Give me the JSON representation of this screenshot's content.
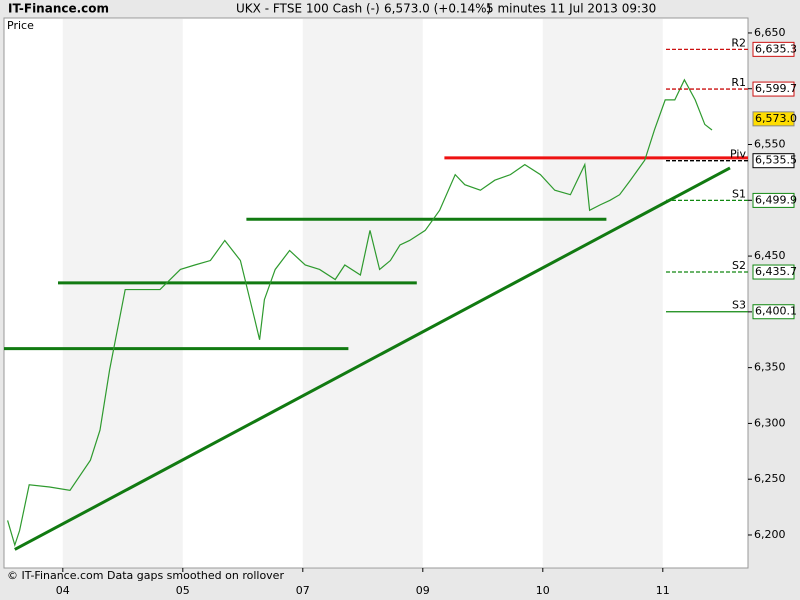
{
  "header": {
    "site": "IT-Finance.com",
    "instrument": "UKX - FTSE 100 Cash (-)",
    "last": "6,573.0 (+0.14%)",
    "interval": "5 minutes",
    "datetime": "11 Jul 2013 09:30"
  },
  "chart_data": {
    "type": "line",
    "y_label": "Price",
    "footer": "© IT-Finance.com  Data gaps smoothed on rollover",
    "color": "#2e9a2e",
    "shaded_days": true,
    "x": [
      -0.46,
      -0.4,
      -0.36,
      -0.28,
      -0.11,
      0.06,
      0.23,
      0.31,
      0.39,
      0.52,
      0.6,
      0.68,
      0.81,
      0.98,
      1.1,
      1.23,
      1.35,
      1.48,
      1.6,
      1.64,
      1.68,
      1.77,
      1.89,
      2.02,
      2.14,
      2.27,
      2.35,
      2.48,
      2.56,
      2.64,
      2.73,
      2.81,
      2.89,
      3.02,
      3.14,
      3.27,
      3.35,
      3.48,
      3.6,
      3.73,
      3.85,
      3.98,
      4.1,
      4.23,
      4.35,
      4.39,
      4.48,
      4.56,
      4.64,
      4.73,
      4.85,
      4.93,
      5.02,
      5.1,
      5.18,
      5.27,
      5.35,
      5.41
    ],
    "values": [
      6213,
      6191,
      6204,
      6245,
      6243,
      6240,
      6267,
      6294,
      6348,
      6420,
      6420,
      6420,
      6420,
      6438,
      6442,
      6446,
      6464,
      6446,
      6393,
      6375,
      6411,
      6438,
      6455,
      6442,
      6438,
      6429,
      6442,
      6433,
      6473,
      6438,
      6446,
      6460,
      6464,
      6473,
      6491,
      6523,
      6514,
      6509,
      6518,
      6523,
      6532,
      6523,
      6509,
      6505,
      6532,
      6491,
      6496,
      6500,
      6505,
      6518,
      6536,
      6563,
      6590,
      6590,
      6608,
      6590,
      6568,
      6563
    ],
    "xlim": [
      -0.49,
      5.71
    ],
    "ylim": [
      6170.4,
      6663.4
    ],
    "xticks": [
      {
        "value": 0,
        "label": "04"
      },
      {
        "value": 1,
        "label": "05"
      },
      {
        "value": 2,
        "label": "07"
      },
      {
        "value": 3,
        "label": "09"
      },
      {
        "value": 4,
        "label": "10"
      },
      {
        "value": 5,
        "label": "11"
      }
    ],
    "yticks": [
      {
        "value": 6200,
        "label": "6,200"
      },
      {
        "value": 6250,
        "label": "6,250"
      },
      {
        "value": 6300,
        "label": "6,300"
      },
      {
        "value": 6350,
        "label": "6,350"
      },
      {
        "value": 6400,
        "label": "6,400"
      },
      {
        "value": 6450,
        "label": "6,450"
      },
      {
        "value": 6500,
        "label": "6,500"
      },
      {
        "value": 6550,
        "label": "6,550"
      },
      {
        "value": 6600,
        "label": "6,600"
      },
      {
        "value": 6650,
        "label": "6,650"
      }
    ],
    "levels": [
      {
        "x": [
          -0.49,
          2.38
        ],
        "y": [
          6367,
          6367
        ],
        "color": "#117a11"
      },
      {
        "x": [
          -0.04,
          2.95
        ],
        "y": [
          6426,
          6426
        ],
        "color": "#117a11"
      },
      {
        "x": [
          1.53,
          4.53
        ],
        "y": [
          6483,
          6483
        ],
        "color": "#117a11"
      },
      {
        "x": [
          3.18,
          5.71
        ],
        "y": [
          6538,
          6538
        ],
        "color": "#ee1111"
      },
      {
        "x": [
          -0.4,
          5.56
        ],
        "y": [
          6187,
          6529
        ],
        "color": "#117a11"
      }
    ],
    "pivots": [
      {
        "name": "R2",
        "value": 6635.3,
        "label": "6,635.3",
        "color": "#cc1111",
        "dashed": true
      },
      {
        "name": "R1",
        "value": 6599.7,
        "label": "6,599.7",
        "color": "#cc1111",
        "dashed": true
      },
      {
        "name": "Piv",
        "value": 6535.5,
        "label": "6,535.5",
        "color": "#000000",
        "dashed": true
      },
      {
        "name": "S1",
        "value": 6499.9,
        "label": "6,499.9",
        "color": "#118811",
        "dashed": true
      },
      {
        "name": "S2",
        "value": 6435.7,
        "label": "6,435.7",
        "color": "#118811",
        "dashed": true
      },
      {
        "name": "S3",
        "value": 6400.1,
        "label": "6,400.1",
        "color": "#118811",
        "dashed": false
      }
    ],
    "last_price": {
      "value": 6573.0,
      "label": "6,573.0",
      "color": "#ffdd00"
    }
  }
}
